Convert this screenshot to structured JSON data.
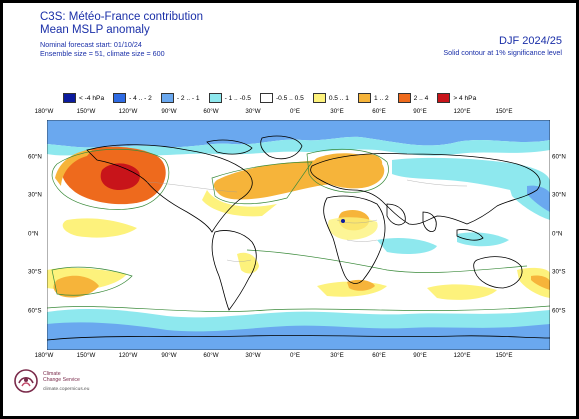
{
  "header": {
    "title": "C3S: Météo-France contribution",
    "subtitle": "Mean MSLP anomaly",
    "forecast_start": "Nominal forecast start: 01/10/24",
    "ensemble": "Ensemble size = 51, climate size = 600",
    "season": "DJF 2024/25",
    "contour_note": "Solid contour at 1% significance level"
  },
  "legend": {
    "items": [
      {
        "label": "< -4 hPa",
        "color": "#0b1b9e"
      },
      {
        "label": "- 4 .. - 2",
        "color": "#2f6be3"
      },
      {
        "label": "- 2 .. - 1",
        "color": "#6aa8ef"
      },
      {
        "label": "- 1 .. -0.5",
        "color": "#8ee8ee"
      },
      {
        "label": "-0.5 .. 0.5",
        "color": "#ffffff"
      },
      {
        "label": "0.5 .. 1",
        "color": "#fdf27c"
      },
      {
        "label": "1 .. 2",
        "color": "#f6b43a"
      },
      {
        "label": "2 .. 4",
        "color": "#ee6a1d"
      },
      {
        "label": "> 4 hPa",
        "color": "#c8141a"
      }
    ]
  },
  "map": {
    "lon_ticks": [
      "180°W",
      "150°W",
      "120°W",
      "90°W",
      "60°W",
      "30°W",
      "0°E",
      "30°E",
      "60°E",
      "90°E",
      "120°E",
      "150°E"
    ],
    "lat_ticks_left": [
      "60°N",
      "30°N",
      "0°N",
      "30°S",
      "60°S"
    ],
    "lat_ticks_right": [
      "60°N",
      "30°N",
      "0°N",
      "30°S",
      "60°S"
    ],
    "projection_icon": "world-map-icon"
  },
  "logo": {
    "line1": "Climate",
    "line2": "Change Service",
    "url": "climate.copernicus.eu"
  }
}
